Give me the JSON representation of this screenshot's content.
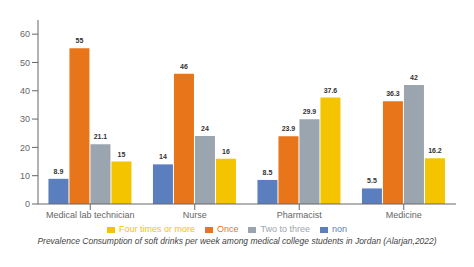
{
  "chart_data": {
    "type": "bar",
    "subtitle": "Prevalence Consumption of soft drinks per week among medical college students in Jordan (Alarjan,2022)",
    "categories": [
      "Medical lab technician",
      "Nurse",
      "Pharmacist",
      "Medicine"
    ],
    "series": [
      {
        "name": "non",
        "color": "#5b7fbe",
        "values": [
          8.9,
          14,
          8.5,
          5.5
        ]
      },
      {
        "name": "Once",
        "color": "#e8751a",
        "values": [
          55,
          46,
          23.9,
          36.3
        ]
      },
      {
        "name": "Two to three",
        "color": "#9ba5af",
        "values": [
          21.1,
          24,
          29.9,
          42
        ]
      },
      {
        "name": "Four times or more",
        "color": "#f5c400",
        "values": [
          15,
          16,
          37.6,
          16.2
        ]
      }
    ],
    "ylim": [
      0,
      65
    ],
    "yticks": [
      0,
      10,
      20,
      30,
      40,
      50,
      60
    ],
    "grid": false,
    "legend": "bottom",
    "data_labels": true
  }
}
